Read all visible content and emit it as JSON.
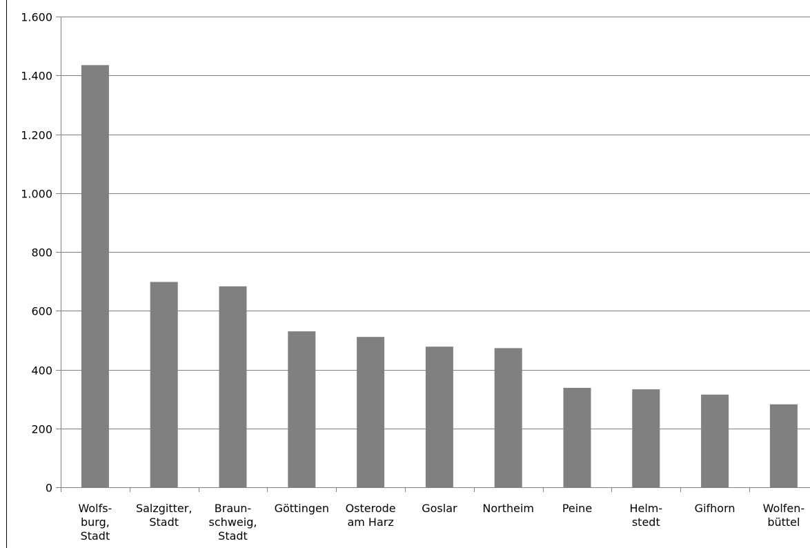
{
  "chart_data": {
    "type": "bar",
    "categories": [
      [
        "Wolfs-",
        "burg,",
        "Stadt"
      ],
      [
        "Salzgitter,",
        "Stadt"
      ],
      [
        "Braun-",
        "schweig,",
        "Stadt"
      ],
      [
        "Göttingen"
      ],
      [
        "Osterode",
        "am Harz"
      ],
      [
        "Goslar"
      ],
      [
        "Northeim"
      ],
      [
        "Peine"
      ],
      [
        "Helm-",
        "stedt"
      ],
      [
        "Gifhorn"
      ],
      [
        "Wolfen-",
        "büttel"
      ]
    ],
    "values": [
      1435,
      698,
      683,
      530,
      511,
      478,
      473,
      338,
      333,
      315,
      282
    ],
    "ylim": [
      0,
      1600
    ],
    "yticks": [
      0,
      200,
      400,
      600,
      800,
      1000,
      1200,
      1400,
      1600
    ],
    "ytick_labels": [
      "0",
      "200",
      "400",
      "600",
      "800",
      "1.000",
      "1.200",
      "1.400",
      "1.600"
    ],
    "grid": true,
    "bar_color": "#808080",
    "grid_color": "#808080",
    "title": "",
    "xlabel": "",
    "ylabel": ""
  }
}
